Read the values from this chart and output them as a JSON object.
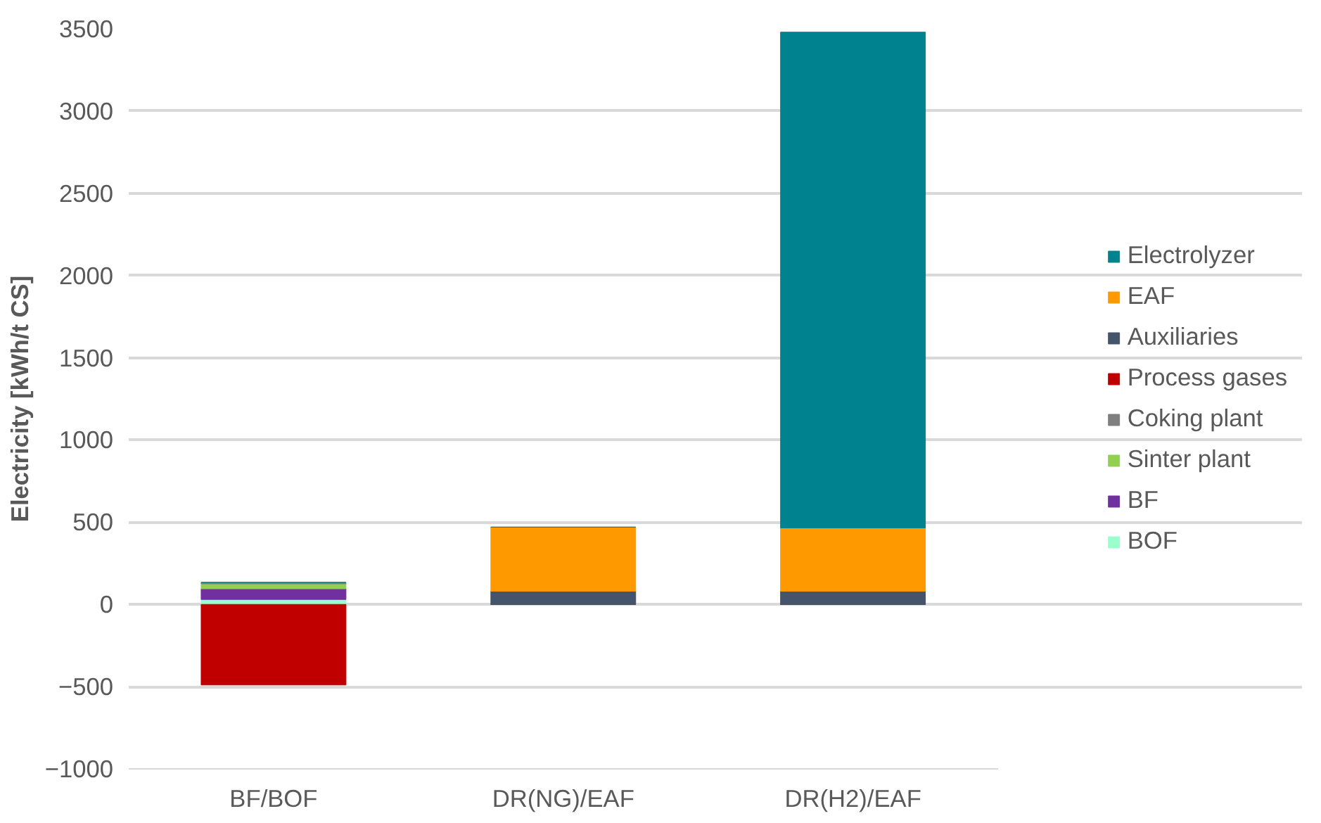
{
  "chart_data": {
    "type": "bar",
    "stacked": true,
    "ylabel": "Electricity [kWh/t CS]",
    "categories": [
      "BF/BOF",
      "DR(NG)/EAF",
      "DR(H2)/EAF"
    ],
    "ylim": [
      -1000,
      3500
    ],
    "yticks": [
      -1000,
      -500,
      0,
      500,
      1000,
      1500,
      2000,
      2500,
      3000,
      3500
    ],
    "grid": "y",
    "legend": "right",
    "series": [
      {
        "name": "BOF",
        "color": "#99ffcc",
        "values": [
          30,
          0,
          0
        ]
      },
      {
        "name": "BF",
        "color": "#7030a0",
        "values": [
          65,
          0,
          0
        ]
      },
      {
        "name": "Sinter plant",
        "color": "#92d050",
        "values": [
          30,
          0,
          0
        ]
      },
      {
        "name": "Coking plant",
        "color": "#7f7f7f",
        "values": [
          8,
          0,
          0
        ]
      },
      {
        "name": "Process gases",
        "color": "#c00000",
        "values": [
          -490,
          0,
          0
        ]
      },
      {
        "name": "Auxiliaries",
        "color": "#44546a",
        "values": [
          0,
          80,
          80
        ]
      },
      {
        "name": "EAF",
        "color": "#ff9900",
        "values": [
          0,
          390,
          385
        ]
      },
      {
        "name": "Electrolyzer",
        "color": "#00838f",
        "values": [
          0,
          0,
          3015
        ]
      }
    ]
  }
}
